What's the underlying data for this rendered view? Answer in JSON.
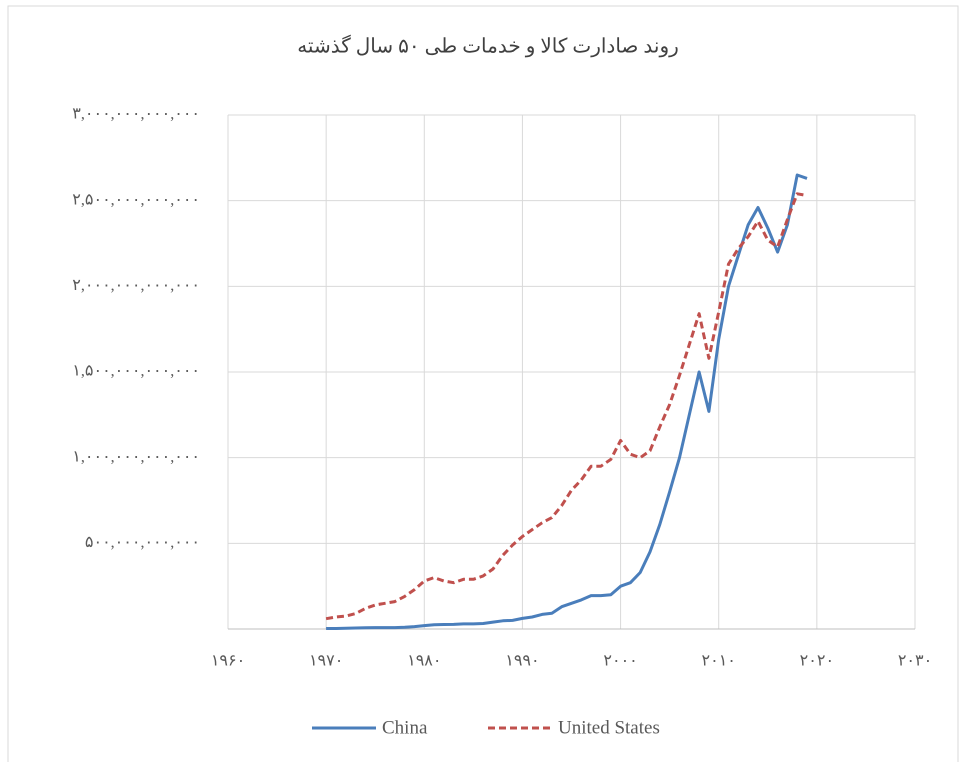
{
  "chart_data": {
    "type": "line",
    "title": "روند صادارت کالا و خدمات طی ۵۰ سال گذشته",
    "x": [
      1970,
      1971,
      1972,
      1973,
      1974,
      1975,
      1976,
      1977,
      1978,
      1979,
      1980,
      1981,
      1982,
      1983,
      1984,
      1985,
      1986,
      1987,
      1988,
      1989,
      1990,
      1991,
      1992,
      1993,
      1994,
      1995,
      1996,
      1997,
      1998,
      1999,
      2000,
      2001,
      2002,
      2003,
      2004,
      2005,
      2006,
      2007,
      2008,
      2009,
      2010,
      2011,
      2012,
      2013,
      2014,
      2015,
      2016,
      2017,
      2018,
      2019
    ],
    "series": [
      {
        "name": "China",
        "color": "#4a7ebb",
        "dash": false,
        "values": [
          3000000000,
          3000000000,
          4000000000,
          6000000000,
          7000000000,
          8000000000,
          8000000000,
          8000000000,
          10000000000,
          14000000000,
          20000000000,
          25000000000,
          26000000000,
          27000000000,
          30000000000,
          30000000000,
          32000000000,
          40000000000,
          48000000000,
          50000000000,
          62000000000,
          70000000000,
          85000000000,
          92000000000,
          130000000000,
          150000000000,
          170000000000,
          195000000000,
          195000000000,
          200000000000,
          250000000000,
          270000000000,
          330000000000,
          450000000000,
          610000000000,
          800000000000,
          1000000000000,
          1250000000000,
          1500000000000,
          1270000000000,
          1690000000000,
          2000000000000,
          2180000000000,
          2360000000000,
          2460000000000,
          2340000000000,
          2200000000000,
          2360000000000,
          2650000000000,
          2630000000000
        ]
      },
      {
        "name": "United States",
        "color": "#c0504d",
        "dash": true,
        "values": [
          60000000000,
          70000000000,
          75000000000,
          90000000000,
          120000000000,
          140000000000,
          150000000000,
          160000000000,
          190000000000,
          230000000000,
          280000000000,
          300000000000,
          280000000000,
          270000000000,
          290000000000,
          290000000000,
          310000000000,
          350000000000,
          430000000000,
          490000000000,
          540000000000,
          580000000000,
          620000000000,
          650000000000,
          720000000000,
          810000000000,
          870000000000,
          950000000000,
          950000000000,
          990000000000,
          1100000000000,
          1020000000000,
          1000000000000,
          1040000000000,
          1180000000000,
          1310000000000,
          1480000000000,
          1660000000000,
          1840000000000,
          1580000000000,
          1850000000000,
          2130000000000,
          2220000000000,
          2290000000000,
          2380000000000,
          2270000000000,
          2230000000000,
          2390000000000,
          2540000000000,
          2530000000000
        ]
      }
    ],
    "xlim": [
      1960,
      2030
    ],
    "xticks": [
      {
        "value": 1960,
        "label": "۱۹۶۰"
      },
      {
        "value": 1970,
        "label": "۱۹۷۰"
      },
      {
        "value": 1980,
        "label": "۱۹۸۰"
      },
      {
        "value": 1990,
        "label": "۱۹۹۰"
      },
      {
        "value": 2000,
        "label": "۲۰۰۰"
      },
      {
        "value": 2010,
        "label": "۲۰۱۰"
      },
      {
        "value": 2020,
        "label": "۲۰۲۰"
      },
      {
        "value": 2030,
        "label": "۲۰۳۰"
      }
    ],
    "ylim": [
      0,
      3000000000000
    ],
    "yticks": [
      {
        "value": 500000000000,
        "label": "۵۰۰,۰۰۰,۰۰۰,۰۰۰"
      },
      {
        "value": 1000000000000,
        "label": "۱,۰۰۰,۰۰۰,۰۰۰,۰۰۰"
      },
      {
        "value": 1500000000000,
        "label": "۱,۵۰۰,۰۰۰,۰۰۰,۰۰۰"
      },
      {
        "value": 2000000000000,
        "label": "۲,۰۰۰,۰۰۰,۰۰۰,۰۰۰"
      },
      {
        "value": 2500000000000,
        "label": "۲,۵۰۰,۰۰۰,۰۰۰,۰۰۰"
      },
      {
        "value": 3000000000000,
        "label": "۳,۰۰۰,۰۰۰,۰۰۰,۰۰۰"
      }
    ],
    "grid": true,
    "legend": "bottom"
  }
}
